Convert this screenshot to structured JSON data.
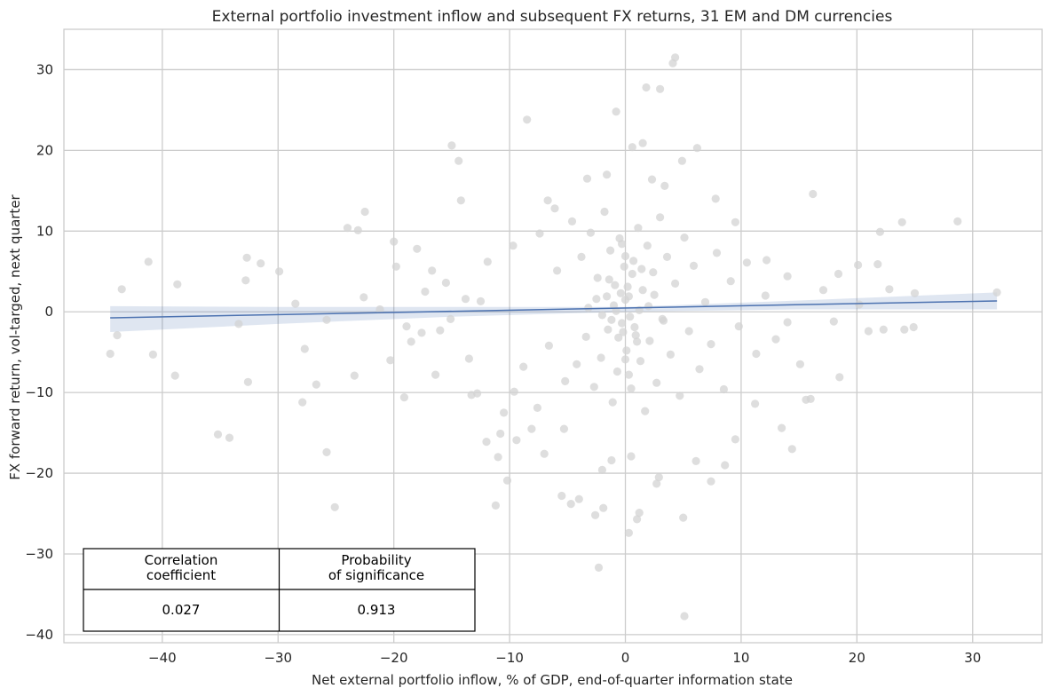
{
  "chart_data": {
    "type": "scatter",
    "title": "External portfolio investment inflow and subsequent FX returns, 31 EM and DM currencies",
    "xlabel": "Net external portfolio inflow, % of GDP, end-of-quarter information state",
    "ylabel": "FX forward return, vol-targed, next quarter",
    "xlim": [
      -48.5,
      36
    ],
    "ylim": [
      -41,
      35
    ],
    "x_ticks": [
      -40,
      -30,
      -20,
      -10,
      0,
      10,
      20,
      30
    ],
    "y_ticks": [
      -40,
      -30,
      -20,
      -10,
      0,
      10,
      20,
      30
    ],
    "x_tick_labels": [
      "−40",
      "−30",
      "−20",
      "−10",
      "0",
      "10",
      "20",
      "30"
    ],
    "y_tick_labels": [
      "−40",
      "−30",
      "−20",
      "−10",
      "0",
      "10",
      "20",
      "30"
    ],
    "grid": true,
    "series": [
      {
        "kind": "scatter",
        "color": "#d3d3d3",
        "points": [
          [
            -44.5,
            -5.2
          ],
          [
            -43.5,
            2.8
          ],
          [
            -41.2,
            6.2
          ],
          [
            -40.8,
            -5.3
          ],
          [
            -38.7,
            3.4
          ],
          [
            -38.9,
            -7.9
          ],
          [
            -35.2,
            -15.2
          ],
          [
            -34.2,
            -15.6
          ],
          [
            -33.4,
            -1.5
          ],
          [
            -32.7,
            6.7
          ],
          [
            -31.5,
            6.0
          ],
          [
            -32.8,
            3.9
          ],
          [
            -32.6,
            -8.7
          ],
          [
            -29.9,
            5.0
          ],
          [
            -28.5,
            1.0
          ],
          [
            -27.7,
            -4.6
          ],
          [
            -27.9,
            -11.2
          ],
          [
            -26.7,
            -9.0
          ],
          [
            -25.8,
            -1.0
          ],
          [
            -25.8,
            -17.4
          ],
          [
            -25.1,
            -24.2
          ],
          [
            -24.0,
            10.4
          ],
          [
            -23.4,
            -7.9
          ],
          [
            -23.1,
            10.1
          ],
          [
            -22.5,
            12.4
          ],
          [
            -22.6,
            1.8
          ],
          [
            -21.2,
            0.3
          ],
          [
            -20.3,
            -6.0
          ],
          [
            -20.0,
            8.7
          ],
          [
            -19.8,
            5.6
          ],
          [
            -43.9,
            -2.9
          ],
          [
            -18.5,
            -3.7
          ],
          [
            -18.0,
            7.8
          ],
          [
            -17.3,
            2.5
          ],
          [
            -16.0,
            -2.3
          ],
          [
            -15.5,
            3.6
          ],
          [
            -15.0,
            20.6
          ],
          [
            -14.4,
            18.7
          ],
          [
            -14.2,
            13.8
          ],
          [
            -13.5,
            -5.8
          ],
          [
            -13.3,
            -10.3
          ],
          [
            -12.8,
            -10.1
          ],
          [
            -12.0,
            -16.1
          ],
          [
            -11.2,
            -24.0
          ],
          [
            -11.0,
            -18.0
          ],
          [
            -10.8,
            -15.1
          ],
          [
            -10.5,
            -12.5
          ],
          [
            -10.2,
            -20.9
          ],
          [
            -9.6,
            -9.9
          ],
          [
            -8.5,
            23.8
          ],
          [
            -8.1,
            -14.5
          ],
          [
            -7.0,
            -17.6
          ],
          [
            -6.7,
            13.8
          ],
          [
            -5.5,
            -22.8
          ],
          [
            -4.7,
            -23.8
          ],
          [
            -4.0,
            -23.2
          ],
          [
            -2.6,
            -25.2
          ],
          [
            -2.3,
            -31.7
          ],
          [
            -1.9,
            -24.3
          ],
          [
            0.3,
            -27.4
          ],
          [
            1.0,
            -25.7
          ],
          [
            1.2,
            -24.9
          ],
          [
            2.9,
            -20.5
          ],
          [
            5.0,
            -25.5
          ],
          [
            5.1,
            -37.7
          ],
          [
            4.3,
            31.5
          ],
          [
            4.1,
            30.8
          ],
          [
            3.0,
            27.6
          ],
          [
            1.8,
            27.8
          ],
          [
            -0.8,
            24.8
          ],
          [
            0.6,
            20.4
          ],
          [
            1.5,
            20.9
          ],
          [
            6.2,
            20.3
          ],
          [
            4.9,
            18.7
          ],
          [
            2.7,
            -21.3
          ],
          [
            7.4,
            -21.0
          ],
          [
            11.2,
            -11.4
          ],
          [
            13.5,
            -14.4
          ],
          [
            14.4,
            -17.0
          ],
          [
            15.6,
            -10.9
          ],
          [
            16.0,
            -10.8
          ],
          [
            16.2,
            14.6
          ],
          [
            17.1,
            2.7
          ],
          [
            18.0,
            -1.2
          ],
          [
            18.4,
            4.7
          ],
          [
            18.5,
            -8.1
          ],
          [
            20.1,
            5.8
          ],
          [
            20.2,
            0.9
          ],
          [
            21.0,
            -2.4
          ],
          [
            21.8,
            5.9
          ],
          [
            22.0,
            9.9
          ],
          [
            22.3,
            -2.2
          ],
          [
            22.8,
            2.8
          ],
          [
            23.9,
            11.1
          ],
          [
            24.1,
            -2.2
          ],
          [
            24.9,
            -1.9
          ],
          [
            25.0,
            2.3
          ],
          [
            28.7,
            11.2
          ],
          [
            32.1,
            2.4
          ],
          [
            12.2,
            6.4
          ],
          [
            14.0,
            -1.3
          ],
          [
            9.5,
            -15.8
          ],
          [
            8.6,
            -19.0
          ],
          [
            6.1,
            -18.5
          ],
          [
            -2.0,
            -19.6
          ],
          [
            -1.2,
            -18.4
          ],
          [
            0.5,
            -17.9
          ],
          [
            -6.1,
            12.8
          ],
          [
            -3.3,
            16.5
          ],
          [
            -1.6,
            17.0
          ],
          [
            2.3,
            16.4
          ],
          [
            3.4,
            15.6
          ],
          [
            9.5,
            11.1
          ],
          [
            7.8,
            14.0
          ],
          [
            -9.4,
            -15.9
          ],
          [
            -7.6,
            -11.9
          ],
          [
            -5.3,
            -14.5
          ],
          [
            -13.8,
            1.6
          ],
          [
            -16.7,
            5.1
          ],
          [
            -17.6,
            -2.6
          ],
          [
            -15.1,
            -0.9
          ],
          [
            -18.9,
            -1.8
          ],
          [
            -19.1,
            -10.6
          ],
          [
            -16.4,
            -7.8
          ],
          [
            -12.5,
            1.3
          ],
          [
            -11.9,
            6.2
          ],
          [
            -9.7,
            8.2
          ],
          [
            -8.8,
            -6.8
          ],
          [
            -7.4,
            9.7
          ],
          [
            -6.6,
            -4.2
          ],
          [
            -5.9,
            5.1
          ],
          [
            -5.2,
            -8.6
          ],
          [
            -4.6,
            11.2
          ],
          [
            -4.2,
            -6.5
          ],
          [
            -3.8,
            6.8
          ],
          [
            -3.4,
            -3.1
          ],
          [
            -3.0,
            9.8
          ],
          [
            -2.7,
            -9.3
          ],
          [
            -2.4,
            4.2
          ],
          [
            -2.1,
            -5.7
          ],
          [
            -1.8,
            12.4
          ],
          [
            -1.5,
            -2.2
          ],
          [
            -1.3,
            7.6
          ],
          [
            -1.1,
            -11.2
          ],
          [
            -0.9,
            3.3
          ],
          [
            -0.7,
            -7.4
          ],
          [
            -0.5,
            9.1
          ],
          [
            -0.3,
            -1.4
          ],
          [
            -0.1,
            5.6
          ],
          [
            0.1,
            -4.8
          ],
          [
            0.3,
            1.9
          ],
          [
            0.5,
            -9.5
          ],
          [
            0.7,
            6.3
          ],
          [
            0.9,
            -2.9
          ],
          [
            1.1,
            10.4
          ],
          [
            1.3,
            -6.1
          ],
          [
            1.5,
            2.7
          ],
          [
            1.7,
            -12.3
          ],
          [
            1.9,
            8.2
          ],
          [
            2.1,
            -3.6
          ],
          [
            2.4,
            4.9
          ],
          [
            2.7,
            -8.8
          ],
          [
            3.0,
            11.7
          ],
          [
            3.3,
            -1.1
          ],
          [
            3.6,
            6.8
          ],
          [
            3.9,
            -5.3
          ],
          [
            4.3,
            3.5
          ],
          [
            4.7,
            -10.4
          ],
          [
            5.1,
            9.2
          ],
          [
            5.5,
            -2.4
          ],
          [
            5.9,
            5.7
          ],
          [
            6.4,
            -7.1
          ],
          [
            6.9,
            1.2
          ],
          [
            7.4,
            -4.0
          ],
          [
            7.9,
            7.3
          ],
          [
            8.5,
            -9.6
          ],
          [
            9.1,
            3.8
          ],
          [
            9.8,
            -1.8
          ],
          [
            10.5,
            6.1
          ],
          [
            11.3,
            -5.2
          ],
          [
            12.1,
            2.0
          ],
          [
            13.0,
            -3.4
          ],
          [
            14.0,
            4.4
          ],
          [
            15.1,
            -6.5
          ],
          [
            -1.0,
            0.8
          ],
          [
            0.0,
            1.5
          ],
          [
            0.4,
            -0.6
          ],
          [
            -0.4,
            2.3
          ],
          [
            0.8,
            -1.9
          ],
          [
            -0.6,
            -3.2
          ],
          [
            1.2,
            0.2
          ],
          [
            -1.4,
            4.0
          ],
          [
            0.2,
            3.1
          ],
          [
            -0.2,
            -2.5
          ],
          [
            0.6,
            4.7
          ],
          [
            -0.8,
            0.1
          ],
          [
            1.0,
            -3.7
          ],
          [
            -1.2,
            -1.0
          ],
          [
            1.4,
            5.3
          ],
          [
            -1.6,
            1.9
          ],
          [
            0.0,
            -5.9
          ],
          [
            0.0,
            6.9
          ],
          [
            0.3,
            -7.8
          ],
          [
            -0.3,
            8.4
          ],
          [
            2.0,
            0.7
          ],
          [
            -2.0,
            -0.4
          ],
          [
            2.5,
            2.1
          ],
          [
            -2.5,
            1.6
          ],
          [
            3.2,
            -0.9
          ],
          [
            -3.2,
            0.5
          ]
        ]
      },
      {
        "kind": "regression-line",
        "color": "#4c72b0",
        "x": [
          -44.5,
          32.1
        ],
        "y": [
          -0.75,
          1.35
        ]
      },
      {
        "kind": "confidence-band",
        "color": "#4c72b0",
        "x": [
          -44.5,
          -30,
          -15,
          0,
          15,
          32.1
        ],
        "lower": [
          -2.5,
          -1.5,
          -0.6,
          0.0,
          0.3,
          0.3
        ],
        "upper": [
          0.7,
          0.6,
          0.6,
          0.6,
          1.4,
          2.4
        ]
      }
    ]
  },
  "stats_table": {
    "headers": [
      "Correlation\ncoefficient",
      "Probability\nof significance"
    ],
    "values": [
      "0.027",
      "0.913"
    ]
  }
}
